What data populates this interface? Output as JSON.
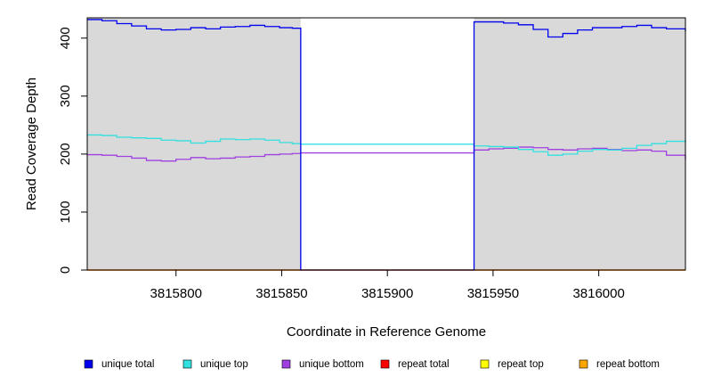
{
  "chart_data": {
    "type": "line",
    "title": "",
    "xlabel": "Coordinate in Reference Genome",
    "ylabel": "Read Coverage Depth",
    "xlim": [
      3815758,
      3816041
    ],
    "ylim": [
      0,
      435
    ],
    "x_ticks": [
      3815800,
      3815850,
      3815900,
      3815950,
      3816000
    ],
    "y_ticks": [
      0,
      100,
      200,
      300,
      400
    ],
    "x_tick_labels": [
      "3815800",
      "3815850",
      "3815900",
      "3815950",
      "3816000"
    ],
    "y_tick_labels": [
      "0",
      "100",
      "200",
      "300",
      "400"
    ],
    "grid": false,
    "shaded_regions": [
      {
        "x": [
          3815758,
          3815859
        ],
        "color": "#d9d9d9"
      },
      {
        "x": [
          3815941,
          3816041
        ],
        "color": "#d9d9d9"
      }
    ],
    "legend_position": "bottom",
    "series": [
      {
        "name": "unique total",
        "color": "#0000ee",
        "points": [
          [
            3815758,
            432
          ],
          [
            3815765,
            430
          ],
          [
            3815772,
            425
          ],
          [
            3815779,
            421
          ],
          [
            3815786,
            416
          ],
          [
            3815793,
            414
          ],
          [
            3815800,
            415
          ],
          [
            3815807,
            418
          ],
          [
            3815814,
            416
          ],
          [
            3815821,
            419
          ],
          [
            3815828,
            420
          ],
          [
            3815835,
            422
          ],
          [
            3815842,
            420
          ],
          [
            3815849,
            418
          ],
          [
            3815855,
            417
          ],
          [
            3815859,
            418
          ],
          [
            3815859,
            0
          ],
          [
            3815941,
            0
          ],
          [
            3815941,
            428
          ],
          [
            3815948,
            428
          ],
          [
            3815955,
            426
          ],
          [
            3815962,
            423
          ],
          [
            3815969,
            415
          ],
          [
            3815976,
            402
          ],
          [
            3815983,
            408
          ],
          [
            3815990,
            414
          ],
          [
            3815997,
            418
          ],
          [
            3816004,
            418
          ],
          [
            3816011,
            420
          ],
          [
            3816018,
            422
          ],
          [
            3816025,
            418
          ],
          [
            3816032,
            416
          ],
          [
            3816041,
            412
          ]
        ]
      },
      {
        "name": "unique top",
        "color": "#33e0e0",
        "points": [
          [
            3815758,
            233
          ],
          [
            3815765,
            232
          ],
          [
            3815772,
            229
          ],
          [
            3815779,
            228
          ],
          [
            3815786,
            227
          ],
          [
            3815793,
            224
          ],
          [
            3815800,
            223
          ],
          [
            3815807,
            219
          ],
          [
            3815814,
            222
          ],
          [
            3815821,
            226
          ],
          [
            3815828,
            225
          ],
          [
            3815835,
            226
          ],
          [
            3815842,
            224
          ],
          [
            3815849,
            220
          ],
          [
            3815855,
            218
          ],
          [
            3815859,
            217
          ],
          [
            3815941,
            214
          ],
          [
            3815948,
            213
          ],
          [
            3815955,
            212
          ],
          [
            3815962,
            208
          ],
          [
            3815969,
            204
          ],
          [
            3815976,
            198
          ],
          [
            3815983,
            200
          ],
          [
            3815990,
            205
          ],
          [
            3815997,
            208
          ],
          [
            3816004,
            207
          ],
          [
            3816011,
            210
          ],
          [
            3816018,
            215
          ],
          [
            3816025,
            218
          ],
          [
            3816032,
            222
          ],
          [
            3816041,
            224
          ]
        ]
      },
      {
        "name": "unique bottom",
        "color": "#a040e0",
        "points": [
          [
            3815758,
            199
          ],
          [
            3815765,
            198
          ],
          [
            3815772,
            196
          ],
          [
            3815779,
            193
          ],
          [
            3815786,
            189
          ],
          [
            3815793,
            188
          ],
          [
            3815800,
            191
          ],
          [
            3815807,
            194
          ],
          [
            3815814,
            192
          ],
          [
            3815821,
            193
          ],
          [
            3815828,
            195
          ],
          [
            3815835,
            196
          ],
          [
            3815842,
            199
          ],
          [
            3815849,
            200
          ],
          [
            3815855,
            201
          ],
          [
            3815859,
            202
          ],
          [
            3815941,
            207
          ],
          [
            3815948,
            209
          ],
          [
            3815955,
            210
          ],
          [
            3815962,
            212
          ],
          [
            3815969,
            211
          ],
          [
            3815976,
            208
          ],
          [
            3815983,
            207
          ],
          [
            3815990,
            209
          ],
          [
            3815997,
            210
          ],
          [
            3816004,
            208
          ],
          [
            3816011,
            206
          ],
          [
            3816018,
            207
          ],
          [
            3816025,
            205
          ],
          [
            3816032,
            198
          ],
          [
            3816041,
            190
          ]
        ]
      },
      {
        "name": "repeat total",
        "color": "#ff0000",
        "points": [
          [
            3815758,
            0
          ],
          [
            3816041,
            0
          ]
        ]
      },
      {
        "name": "repeat top",
        "color": "#ffff00",
        "points": [
          [
            3815758,
            0
          ],
          [
            3816041,
            0
          ]
        ]
      },
      {
        "name": "repeat bottom",
        "color": "#ffa500",
        "points": [
          [
            3815758,
            0
          ],
          [
            3816041,
            0
          ]
        ]
      }
    ]
  }
}
